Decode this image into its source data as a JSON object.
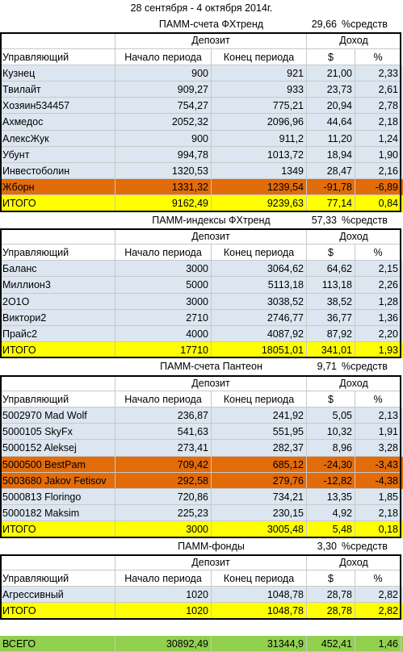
{
  "title": "28 сентября - 4 октября 2014г.",
  "sections": [
    {
      "name": "ПАММ-счета ФХтренд",
      "share": "29,66",
      "share_label": "%средств",
      "group_headers": [
        "Депозит",
        "Доход"
      ],
      "columns": [
        "Управляющий",
        "Начало периода",
        "Конец периода",
        "$",
        "%"
      ],
      "rows": [
        [
          "Кузнец",
          "900",
          "921",
          "21,00",
          "2,33"
        ],
        [
          "Твилайт",
          "909,27",
          "933",
          "23,73",
          "2,61"
        ],
        [
          "Хозяин534457",
          "754,27",
          "775,21",
          "20,94",
          "2,78"
        ],
        [
          "Ахмедос",
          "2052,32",
          "2096,96",
          "44,64",
          "2,18"
        ],
        [
          "АлексЖук",
          "900",
          "911,2",
          "11,20",
          "1,24"
        ],
        [
          "Убунт",
          "994,78",
          "1013,72",
          "18,94",
          "1,90"
        ],
        [
          "Инвестоболин",
          "1320,53",
          "1349",
          "28,47",
          "2,16"
        ],
        [
          "Жборн",
          "1331,32",
          "1239,54",
          "-91,78",
          "-6,89"
        ]
      ],
      "highlighted_rows": [
        7
      ],
      "total": [
        "ИТОГО",
        "9162,49",
        "9239,63",
        "77,14",
        "0,84"
      ]
    },
    {
      "name": "ПАММ-индексы ФХтренд",
      "share": "57,33",
      "share_label": "%средств",
      "group_headers": [
        "Депозит",
        "Доход"
      ],
      "columns": [
        "Управляющий",
        "Начало периода",
        "Конец периода",
        "$",
        "%"
      ],
      "rows": [
        [
          "Баланс",
          "3000",
          "3064,62",
          "64,62",
          "2,15"
        ],
        [
          "Миллион3",
          "5000",
          "5113,18",
          "113,18",
          "2,26"
        ],
        [
          "2O1O",
          "3000",
          "3038,52",
          "38,52",
          "1,28"
        ],
        [
          "Виктори2",
          "2710",
          "2746,77",
          "36,77",
          "1,36"
        ],
        [
          "Прайс2",
          "4000",
          "4087,92",
          "87,92",
          "2,20"
        ]
      ],
      "highlighted_rows": [],
      "total": [
        "ИТОГО",
        "17710",
        "18051,01",
        "341,01",
        "1,93"
      ]
    },
    {
      "name": "ПАММ-счета Пантеон",
      "share": "9,71",
      "share_label": "%средств",
      "group_headers": [
        "Депозит",
        "Доход"
      ],
      "columns": [
        "Управляющий",
        "Начало периода",
        "Конец периода",
        "$",
        "%"
      ],
      "rows": [
        [
          "5002970 Mad Wolf",
          "236,87",
          "241,92",
          "5,05",
          "2,13"
        ],
        [
          "5000105 SkyFx",
          "541,63",
          "551,95",
          "10,32",
          "1,91"
        ],
        [
          "5000152 Aleksej",
          "273,41",
          "282,37",
          "8,96",
          "3,28"
        ],
        [
          "5000500 BestPam",
          "709,42",
          "685,12",
          "-24,30",
          "-3,43"
        ],
        [
          "5003680 Jakov Fetisov",
          "292,58",
          "279,76",
          "-12,82",
          "-4,38"
        ],
        [
          "5000813 Floringo",
          "720,86",
          "734,21",
          "13,35",
          "1,85"
        ],
        [
          "5000182 Maksim",
          "225,23",
          "230,15",
          "4,92",
          "2,18"
        ]
      ],
      "highlighted_rows": [
        3,
        4
      ],
      "total": [
        "ИТОГО",
        "3000",
        "3005,48",
        "5,48",
        "0,18"
      ]
    },
    {
      "name": "ПАММ-фонды",
      "share": "3,30",
      "share_label": "%средств",
      "group_headers": [
        "Депозит",
        "Доход"
      ],
      "columns": [
        "Управляющий",
        "Начало периода",
        "Конец периода",
        "$",
        "%"
      ],
      "rows": [
        [
          "Агрессивный",
          "1020",
          "1048,78",
          "28,78",
          "2,82"
        ]
      ],
      "highlighted_rows": [],
      "total": [
        "ИТОГО",
        "1020",
        "1048,78",
        "28,78",
        "2,82"
      ]
    }
  ],
  "grand_total": [
    "ВСЕГО",
    "30892,49",
    "31344,9",
    "452,41",
    "1,46"
  ]
}
